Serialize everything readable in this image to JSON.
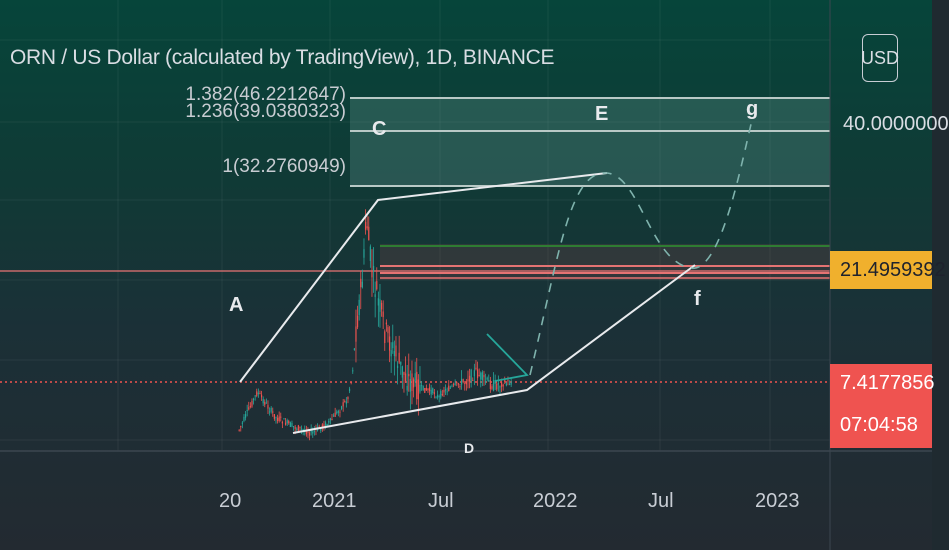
{
  "header": {
    "title": "ORN / US Dollar (calculated by TradingView), 1D, BINANCE",
    "currency": "USD"
  },
  "colors": {
    "up": "#26a69a",
    "down": "#ef5350",
    "pattern_line": "#e8eaed",
    "fib_fill": "#7fb3ad",
    "price_line": "#ef5350",
    "res_label": "#f0b02d"
  },
  "chart_data": {
    "type": "candlestick",
    "symbol": "ORN / US Dollar",
    "interval": "1D",
    "exchange": "BINANCE",
    "x_ticks": [
      "20",
      "2021",
      "Jul",
      "2022",
      "Jul",
      "2023"
    ],
    "y_ticks": [
      40
    ],
    "y_tick_labels": [
      "40.0000000"
    ],
    "current_price": "7.4177856",
    "countdown": "07:04:58",
    "horizontal_level": "21.4959392",
    "fib_levels": [
      {
        "ratio": "1.382",
        "value": "46.2212647",
        "label": "1.382(46.2212647)"
      },
      {
        "ratio": "1.236",
        "value": "39.0380323",
        "label": "1.236(39.0380323)"
      },
      {
        "ratio": "1",
        "value": "32.2760949",
        "label": "1(32.2760949)"
      }
    ],
    "wave_labels": [
      "A",
      "C",
      "E",
      "f",
      "g",
      "D"
    ],
    "price_path": [
      {
        "date": "2020-08",
        "price": 2.0
      },
      {
        "date": "2020-09",
        "price": 4.4
      },
      {
        "date": "2020-10",
        "price": 2.8
      },
      {
        "date": "2020-11",
        "price": 2.2
      },
      {
        "date": "2020-12",
        "price": 1.8
      },
      {
        "date": "2021-01",
        "price": 2.5
      },
      {
        "date": "2021-02",
        "price": 4.0
      },
      {
        "date": "2021-03",
        "price": 25.0
      },
      {
        "date": "2021-04",
        "price": 13.0
      },
      {
        "date": "2021-05",
        "price": 9.0
      },
      {
        "date": "2021-06",
        "price": 5.5
      },
      {
        "date": "2021-07",
        "price": 4.0
      },
      {
        "date": "2021-08",
        "price": 6.5
      },
      {
        "date": "2021-09",
        "price": 9.0
      },
      {
        "date": "2021-10",
        "price": 6.5
      },
      {
        "date": "2021-11",
        "price": 7.4
      }
    ]
  }
}
